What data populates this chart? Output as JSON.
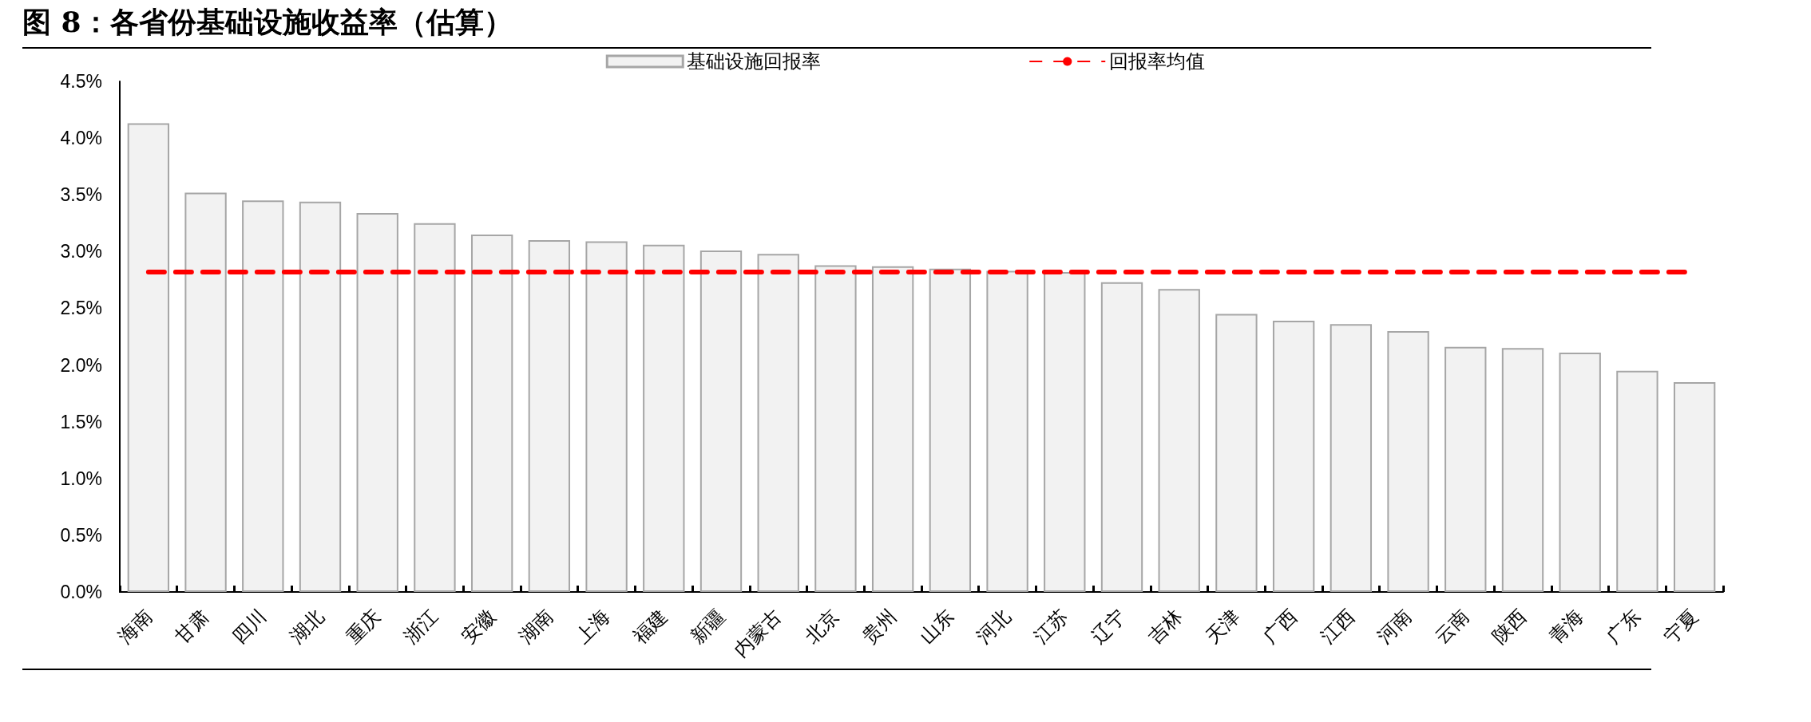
{
  "chart_data": {
    "type": "bar",
    "title": "图 8：各省份基础设施收益率（估算）",
    "categories": [
      "海南",
      "甘肃",
      "四川",
      "湖北",
      "重庆",
      "浙江",
      "安徽",
      "湖南",
      "上海",
      "福建",
      "新疆",
      "内蒙古",
      "北京",
      "贵州",
      "山东",
      "河北",
      "江苏",
      "辽宁",
      "吉林",
      "天津",
      "广西",
      "江西",
      "河南",
      "云南",
      "陕西",
      "青海",
      "广东",
      "宁夏"
    ],
    "series": [
      {
        "name": "基础设施回报率",
        "color": "#f2f2f2",
        "values": [
          4.13,
          3.52,
          3.45,
          3.44,
          3.34,
          3.25,
          3.15,
          3.1,
          3.09,
          3.06,
          3.01,
          2.98,
          2.88,
          2.87,
          2.85,
          2.83,
          2.82,
          2.73,
          2.67,
          2.45,
          2.39,
          2.36,
          2.3,
          2.16,
          2.15,
          2.11,
          1.95,
          1.85
        ]
      }
    ],
    "ref_lines": [
      {
        "axis": "y",
        "value": 2.82,
        "label": "回报率均值",
        "color": "#ff0000",
        "line_style": "dashed"
      }
    ],
    "ylim": [
      0,
      4.5
    ],
    "yticks": [
      {
        "value": 0,
        "label": "0.0%"
      },
      {
        "value": 0.5,
        "label": "0.5%"
      },
      {
        "value": 1,
        "label": "1.0%"
      },
      {
        "value": 1.5,
        "label": "1.5%"
      },
      {
        "value": 2,
        "label": "2.0%"
      },
      {
        "value": 2.5,
        "label": "2.5%"
      },
      {
        "value": 3,
        "label": "3.0%"
      },
      {
        "value": 3.5,
        "label": "3.5%"
      },
      {
        "value": 4,
        "label": "4.0%"
      },
      {
        "value": 4.5,
        "label": "4.5%"
      }
    ],
    "grid": false,
    "legend": "top"
  }
}
